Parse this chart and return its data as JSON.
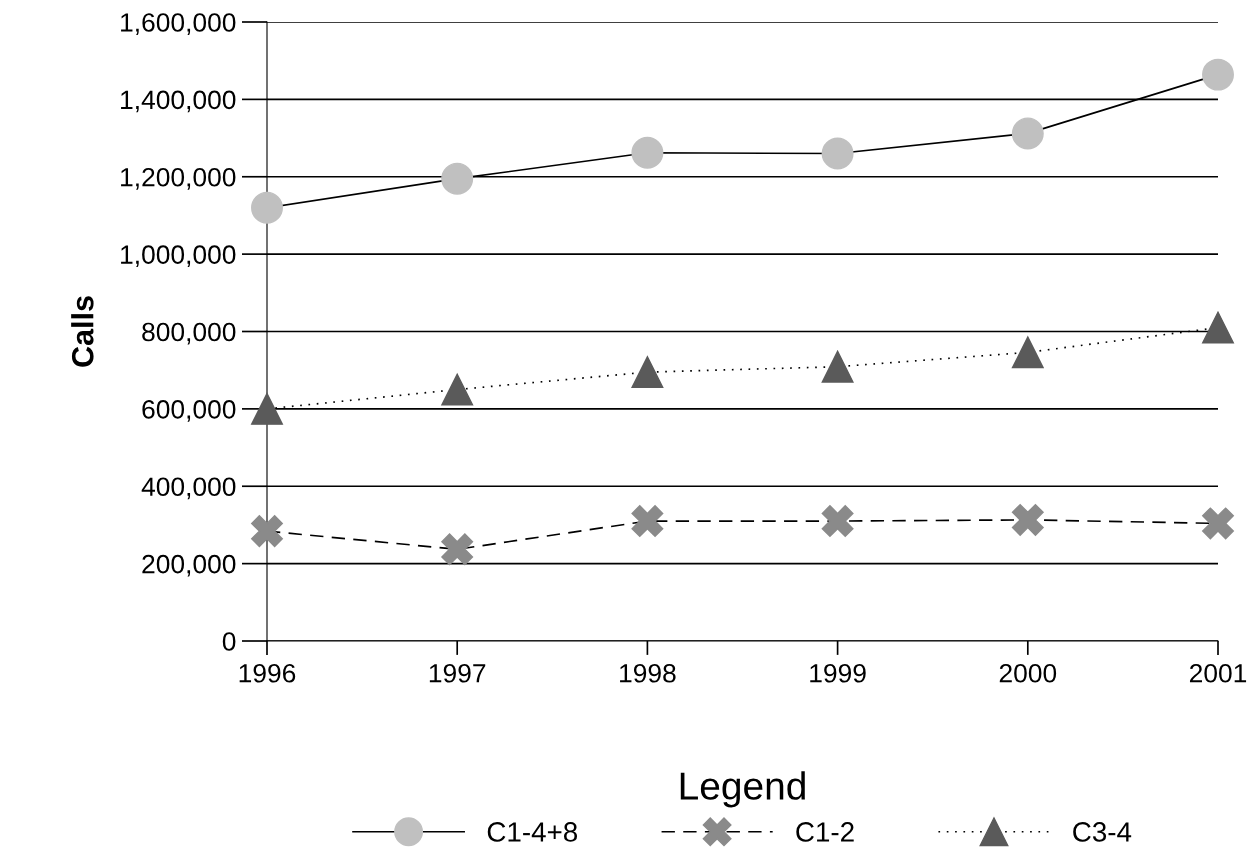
{
  "chart_data": {
    "type": "line",
    "ylabel": "Calls",
    "legend_title": "Legend",
    "legend": "bottom",
    "grid": "y",
    "categories": [
      "1996",
      "1997",
      "1998",
      "1999",
      "2000",
      "2001"
    ],
    "series": [
      {
        "name": "C1-4+8",
        "color": "#c0c0c0",
        "marker": "circle",
        "line_style": "solid",
        "values": [
          1120000,
          1195000,
          1262000,
          1260000,
          1312000,
          1464000
        ]
      },
      {
        "name": "C1-2",
        "color": "#8a8a8a",
        "marker": "cross",
        "line_style": "dashed",
        "values": [
          284000,
          237000,
          310000,
          310000,
          313000,
          304000
        ]
      },
      {
        "name": "C3-4",
        "color": "#5a5a5a",
        "marker": "triangle",
        "line_style": "dotted",
        "values": [
          600000,
          650000,
          695000,
          709000,
          746000,
          810000
        ]
      }
    ],
    "ylim": [
      0,
      1600000
    ],
    "yticks": [
      {
        "value": 0,
        "label": "0"
      },
      {
        "value": 200000,
        "label": "200,000"
      },
      {
        "value": 400000,
        "label": "400,000"
      },
      {
        "value": 600000,
        "label": "600,000"
      },
      {
        "value": 800000,
        "label": "800,000"
      },
      {
        "value": 1000000,
        "label": "1,000,000"
      },
      {
        "value": 1200000,
        "label": "1,200,000"
      },
      {
        "value": 1400000,
        "label": "1,400,000"
      },
      {
        "value": 1600000,
        "label": "1,600,000"
      }
    ]
  }
}
